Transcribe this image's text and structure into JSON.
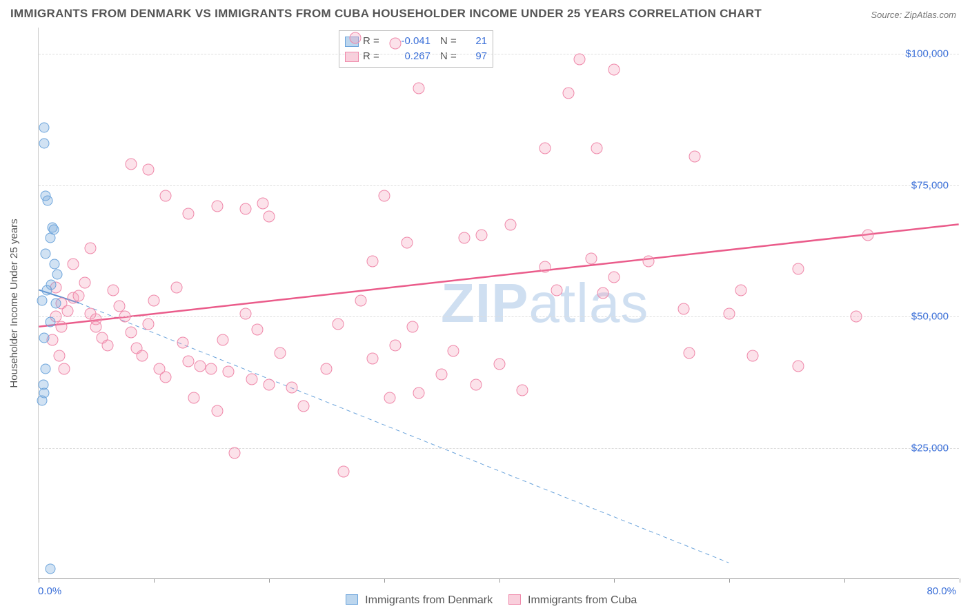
{
  "title": "IMMIGRANTS FROM DENMARK VS IMMIGRANTS FROM CUBA HOUSEHOLDER INCOME UNDER 25 YEARS CORRELATION CHART",
  "source": "Source: ZipAtlas.com",
  "watermark_a": "ZIP",
  "watermark_b": "atlas",
  "ylabel": "Householder Income Under 25 years",
  "chart": {
    "type": "scatter",
    "background_color": "#ffffff",
    "grid_color": "#dddddd",
    "border_color": "#999999",
    "xlim": [
      0,
      80
    ],
    "ylim": [
      0,
      105000
    ],
    "xticks": [
      0,
      10,
      20,
      30,
      40,
      50,
      60,
      70,
      80
    ],
    "yticks": [
      {
        "v": 25000,
        "label": "$25,000"
      },
      {
        "v": 50000,
        "label": "$50,000"
      },
      {
        "v": 75000,
        "label": "$75,000"
      },
      {
        "v": 100000,
        "label": "$100,000"
      }
    ],
    "xaxis_min_label": "0.0%",
    "xaxis_max_label": "80.0%",
    "label_fontsize": 15,
    "label_color": "#3a6fd8",
    "axis_text_color": "#555555",
    "marker_radius_denmark": 7.5,
    "marker_radius_cuba": 8.5,
    "series": {
      "denmark": {
        "name": "Immigrants from Denmark",
        "color_fill": "#7aaddeaa",
        "color_stroke": "#6aa3db",
        "R": "-0.041",
        "N": "21",
        "trend": {
          "x1": 0,
          "y1": 55000,
          "x2": 3.5,
          "y2": 52500,
          "solid": true,
          "stroke": "#5b8fd0",
          "width": 2
        },
        "trend_ext": {
          "x1": 3.5,
          "y1": 52500,
          "x2": 60,
          "y2": 3000,
          "solid": false,
          "stroke": "#6aa3db",
          "width": 1
        },
        "points": [
          [
            0.5,
            86000
          ],
          [
            0.5,
            83000
          ],
          [
            0.6,
            73000
          ],
          [
            0.8,
            72000
          ],
          [
            1.2,
            67000
          ],
          [
            1.3,
            66500
          ],
          [
            1.0,
            65000
          ],
          [
            0.6,
            62000
          ],
          [
            1.4,
            60000
          ],
          [
            1.6,
            58000
          ],
          [
            1.1,
            56000
          ],
          [
            0.7,
            55000
          ],
          [
            0.3,
            53000
          ],
          [
            1.5,
            52500
          ],
          [
            1.0,
            49000
          ],
          [
            0.5,
            46000
          ],
          [
            0.6,
            40000
          ],
          [
            0.4,
            37000
          ],
          [
            0.5,
            35500
          ],
          [
            0.3,
            34000
          ],
          [
            1.0,
            2000
          ]
        ]
      },
      "cuba": {
        "name": "Immigrants from Cuba",
        "color_fill": "#f4a0b9aa",
        "color_stroke": "#ef87a9",
        "R": "0.267",
        "N": "97",
        "trend": {
          "x1": 0,
          "y1": 48000,
          "x2": 80,
          "y2": 67500,
          "solid": true,
          "stroke": "#ea5b8a",
          "width": 2.5
        },
        "points": [
          [
            27.5,
            103000
          ],
          [
            31,
            102000
          ],
          [
            33,
            93500
          ],
          [
            46,
            92500
          ],
          [
            50,
            97000
          ],
          [
            44,
            82000
          ],
          [
            48.5,
            82000
          ],
          [
            57,
            80500
          ],
          [
            47,
            99000
          ],
          [
            8,
            79000
          ],
          [
            9.5,
            78000
          ],
          [
            13,
            69500
          ],
          [
            15.5,
            71000
          ],
          [
            18,
            70500
          ],
          [
            19.5,
            71500
          ],
          [
            20,
            69000
          ],
          [
            11,
            73000
          ],
          [
            37,
            65000
          ],
          [
            38.5,
            65500
          ],
          [
            41,
            67500
          ],
          [
            44,
            59500
          ],
          [
            48,
            61000
          ],
          [
            53,
            60500
          ],
          [
            30,
            73000
          ],
          [
            32,
            64000
          ],
          [
            29,
            60500
          ],
          [
            72,
            65500
          ],
          [
            56,
            51500
          ],
          [
            56.5,
            43000
          ],
          [
            60,
            50500
          ],
          [
            62,
            42500
          ],
          [
            61,
            55000
          ],
          [
            66,
            59000
          ],
          [
            49,
            54500
          ],
          [
            50,
            57500
          ],
          [
            45,
            55000
          ],
          [
            3,
            53500
          ],
          [
            2,
            52500
          ],
          [
            1.5,
            55500
          ],
          [
            2.5,
            51000
          ],
          [
            1.5,
            50000
          ],
          [
            2,
            48000
          ],
          [
            3.5,
            54000
          ],
          [
            4,
            56500
          ],
          [
            4.5,
            50500
          ],
          [
            5,
            49500
          ],
          [
            5,
            48000
          ],
          [
            5.5,
            46000
          ],
          [
            6,
            44500
          ],
          [
            6.5,
            55000
          ],
          [
            7,
            52000
          ],
          [
            7.5,
            50000
          ],
          [
            8,
            47000
          ],
          [
            8.5,
            44000
          ],
          [
            9,
            42500
          ],
          [
            9.5,
            48500
          ],
          [
            10,
            53000
          ],
          [
            10.5,
            40000
          ],
          [
            11,
            38500
          ],
          [
            12,
            55500
          ],
          [
            12.5,
            45000
          ],
          [
            13,
            41500
          ],
          [
            14,
            40500
          ],
          [
            15,
            40000
          ],
          [
            16,
            45500
          ],
          [
            16.5,
            39500
          ],
          [
            18,
            50500
          ],
          [
            18.5,
            38000
          ],
          [
            19,
            47500
          ],
          [
            20,
            37000
          ],
          [
            21,
            43000
          ],
          [
            22,
            36500
          ],
          [
            23,
            33000
          ],
          [
            25,
            40000
          ],
          [
            13.5,
            34500
          ],
          [
            15.5,
            32000
          ],
          [
            17,
            24000
          ],
          [
            26,
            48500
          ],
          [
            26.5,
            20500
          ],
          [
            30.5,
            34500
          ],
          [
            31,
            44500
          ],
          [
            32.5,
            48000
          ],
          [
            33,
            35500
          ],
          [
            35,
            39000
          ],
          [
            36,
            43500
          ],
          [
            38,
            37000
          ],
          [
            40,
            41000
          ],
          [
            42,
            36000
          ],
          [
            28,
            53000
          ],
          [
            29,
            42000
          ],
          [
            71,
            50000
          ],
          [
            66,
            40500
          ],
          [
            3,
            60000
          ],
          [
            4.5,
            63000
          ],
          [
            1.2,
            45500
          ],
          [
            1.8,
            42500
          ],
          [
            2.2,
            40000
          ]
        ]
      }
    }
  },
  "legend_box": {
    "R_label": "R  =",
    "N_label": "N  ="
  },
  "bottom_legend": {
    "a": "Immigrants from Denmark",
    "b": "Immigrants from Cuba"
  }
}
